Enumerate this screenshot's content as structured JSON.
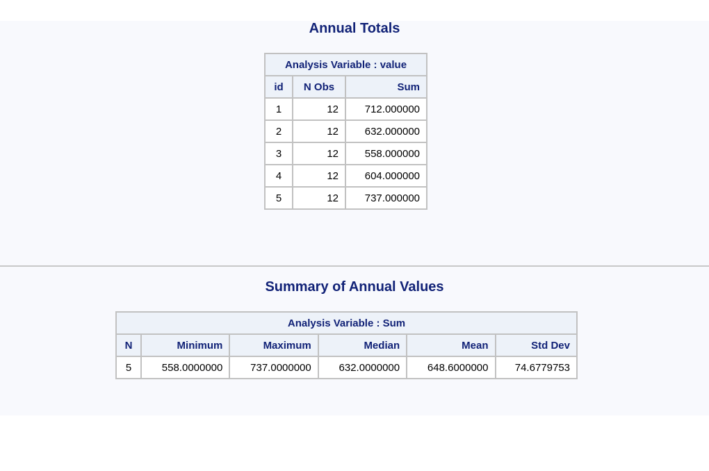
{
  "report1": {
    "title": "Annual Totals",
    "spanning_header": "Analysis Variable : value",
    "columns": [
      "id",
      "N Obs",
      "Sum"
    ],
    "rows": [
      [
        "1",
        "12",
        "712.000000"
      ],
      [
        "2",
        "12",
        "632.000000"
      ],
      [
        "3",
        "12",
        "558.000000"
      ],
      [
        "4",
        "12",
        "604.000000"
      ],
      [
        "5",
        "12",
        "737.000000"
      ]
    ]
  },
  "report2": {
    "title": "Summary of Annual Values",
    "spanning_header": "Analysis Variable : Sum",
    "columns": [
      "N",
      "Minimum",
      "Maximum",
      "Median",
      "Mean",
      "Std Dev"
    ],
    "rows": [
      [
        "5",
        "558.0000000",
        "737.0000000",
        "632.0000000",
        "648.6000000",
        "74.6779753"
      ]
    ]
  },
  "colors": {
    "title": "#112277",
    "header_bg": "#edf2f9",
    "border": "#c1c1c1",
    "panel_bg": "#f8f9fd"
  }
}
